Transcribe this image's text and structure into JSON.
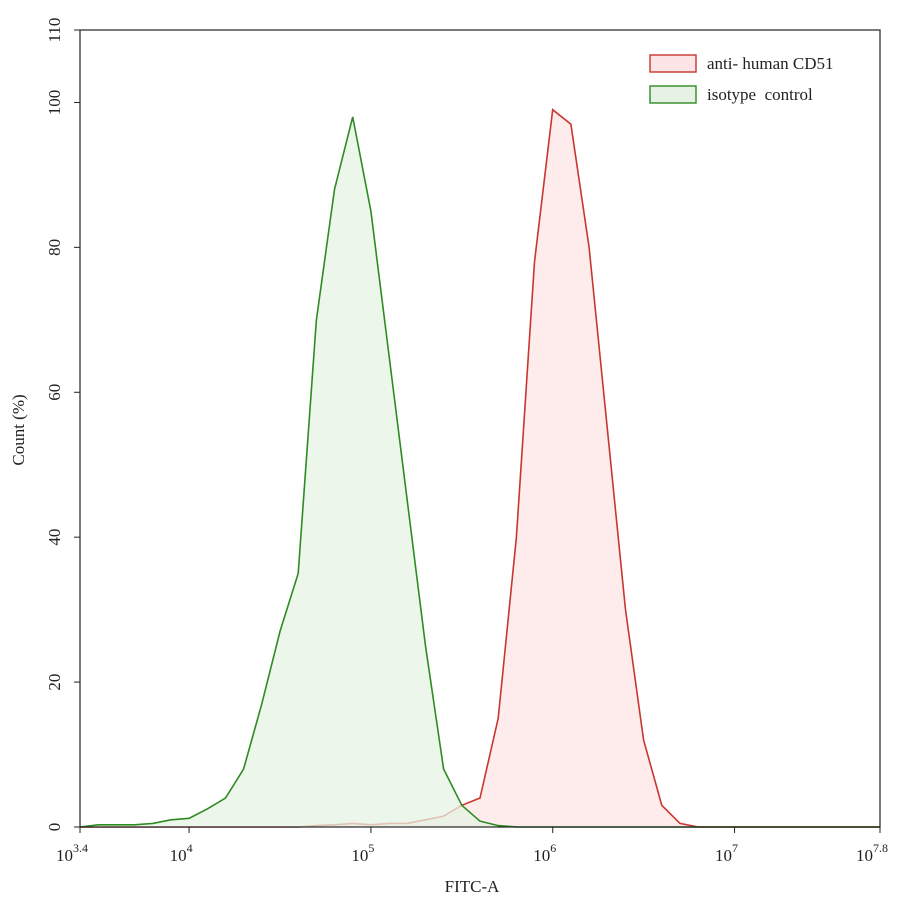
{
  "chart_data": {
    "type": "area",
    "title_x": "FITC-A",
    "title_y": "Count (%)",
    "x_scale": "log",
    "x": [
      2512,
      3162,
      3981,
      5012,
      6310,
      7943,
      10000,
      12589,
      15849,
      19953,
      25119,
      31623,
      39811,
      50119,
      63096,
      79433,
      100000,
      125893,
      158489,
      199526,
      251189,
      316228,
      398107,
      501187,
      630957,
      794328,
      1000000,
      1258925,
      1584893,
      1995262,
      2511886,
      3162278,
      3981072,
      5011872,
      6309573,
      7943282,
      10000000,
      12589254,
      15848932,
      19952623,
      25118864,
      31622777,
      39810717,
      50118723,
      63095734
    ],
    "series": [
      {
        "name": "anti- human CD51",
        "color": "#c8362f",
        "fill": "#fde4e6",
        "values": [
          0,
          0,
          0,
          0,
          0,
          0,
          0,
          0,
          0,
          0,
          0,
          0,
          0,
          0.2,
          0.3,
          0.5,
          0.3,
          0.5,
          0.5,
          1,
          1.5,
          3,
          4,
          15,
          40,
          78,
          99,
          97,
          80,
          55,
          30,
          12,
          3,
          0.5,
          0,
          0,
          0,
          0,
          0,
          0,
          0,
          0,
          0,
          0,
          0
        ]
      },
      {
        "name": "isotype  control",
        "color": "#2e8b22",
        "fill": "#e6f3e4",
        "values": [
          0,
          0.3,
          0.3,
          0.3,
          0.5,
          1,
          1.2,
          2.5,
          4,
          8,
          17,
          27,
          35,
          70,
          88,
          98,
          85,
          65,
          45,
          25,
          8,
          3,
          0.8,
          0.2,
          0,
          0,
          0,
          0,
          0,
          0,
          0,
          0,
          0,
          0,
          0,
          0,
          0,
          0,
          0,
          0,
          0,
          0,
          0,
          0,
          0
        ]
      }
    ],
    "xlim": [
      2511.886,
      63095734
    ],
    "xticks": [
      {
        "value": 2511.886,
        "label": "10",
        "exponent": "3.4"
      },
      {
        "value": 10000,
        "label": "10",
        "exponent": "4"
      },
      {
        "value": 100000,
        "label": "10",
        "exponent": "5"
      },
      {
        "value": 1000000,
        "label": "10",
        "exponent": "6"
      },
      {
        "value": 10000000,
        "label": "10",
        "exponent": "7"
      },
      {
        "value": 63095734,
        "label": "10",
        "exponent": "7.8"
      }
    ],
    "ylim": [
      0,
      110
    ],
    "yticks": [
      0,
      20,
      40,
      60,
      80,
      100,
      110
    ],
    "grid": false,
    "legend": "top-right"
  }
}
